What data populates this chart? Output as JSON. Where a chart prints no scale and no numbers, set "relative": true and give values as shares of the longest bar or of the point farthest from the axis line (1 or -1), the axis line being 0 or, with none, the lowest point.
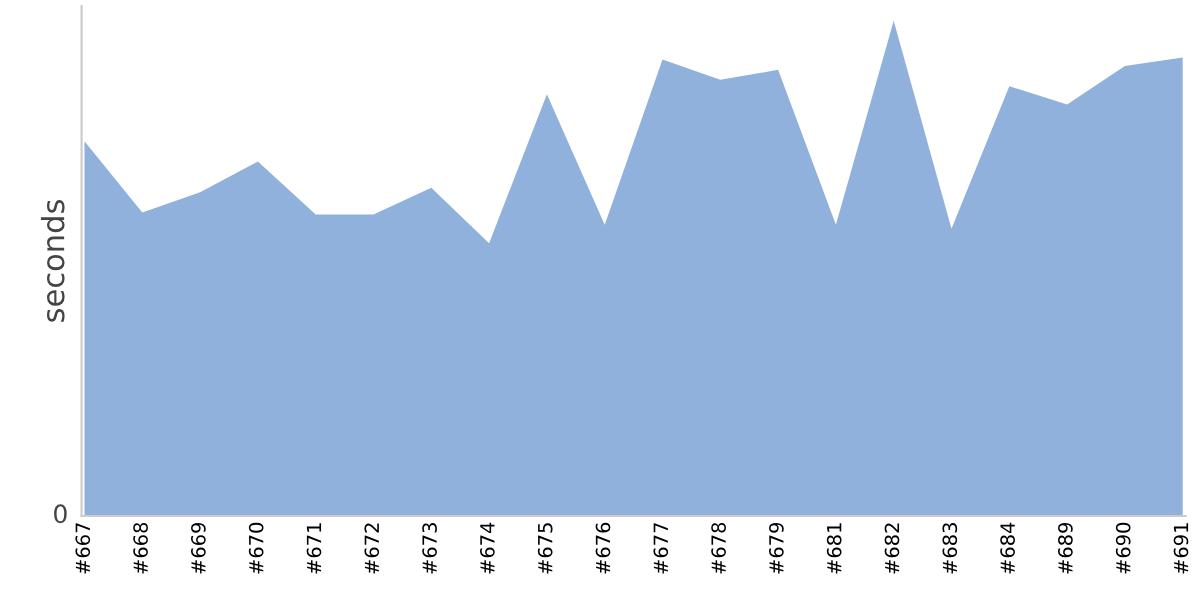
{
  "chart_data": {
    "type": "area",
    "ylabel": "seconds",
    "relative": true,
    "annotations": [
      "0"
    ],
    "grid": false,
    "legend": false,
    "categories": [
      "#667",
      "#668",
      "#669",
      "#670",
      "#671",
      "#672",
      "#673",
      "#674",
      "#675",
      "#676",
      "#677",
      "#678",
      "#679",
      "#681",
      "#682",
      "#683",
      "#684",
      "#689",
      "#690",
      "#691"
    ],
    "series": [
      {
        "color": "#8fb1db",
        "values": [
          0.757,
          0.613,
          0.654,
          0.716,
          0.609,
          0.609,
          0.663,
          0.551,
          0.852,
          0.588,
          0.922,
          0.881,
          0.901,
          0.588,
          1,
          0.58,
          0.868,
          0.831,
          0.909,
          0.926
        ]
      }
    ]
  }
}
